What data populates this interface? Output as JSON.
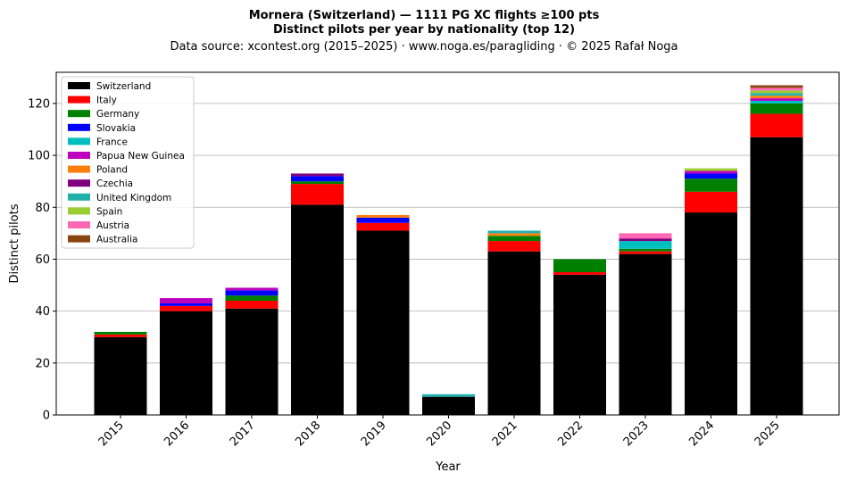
{
  "chart_data": {
    "type": "bar",
    "stacked": true,
    "title": "Mornera (Switzerland)  —  1111 PG XC flights ≥100 pts",
    "subtitle": "Distinct pilots per year by nationality (top 12)",
    "source": "Data source: xcontest.org (2015–2025)  ·  www.noga.es/paragliding  ·  © 2025 Rafał Noga",
    "xlabel": "Year",
    "ylabel": "Distinct pilots",
    "ylim": [
      0,
      132
    ],
    "yticks": [
      0,
      20,
      40,
      60,
      80,
      100,
      120
    ],
    "grid": "y",
    "legend_position": "top-left",
    "categories": [
      "2015",
      "2016",
      "2017",
      "2018",
      "2019",
      "2020",
      "2021",
      "2022",
      "2023",
      "2024",
      "2025"
    ],
    "series": [
      {
        "name": "Switzerland",
        "color": "#000000",
        "values": [
          30,
          40,
          41,
          81,
          71,
          7,
          63,
          54,
          62,
          78,
          107
        ]
      },
      {
        "name": "Italy",
        "color": "#ff0000",
        "values": [
          1,
          2,
          3,
          8,
          3,
          0,
          4,
          1,
          1,
          8,
          9
        ]
      },
      {
        "name": "Germany",
        "color": "#008000",
        "values": [
          1,
          0,
          2,
          1,
          0,
          0,
          2,
          5,
          1,
          5,
          4
        ]
      },
      {
        "name": "Slovakia",
        "color": "#0000ff",
        "values": [
          0,
          1,
          2,
          2,
          2,
          0,
          0,
          0,
          0,
          2,
          0
        ]
      },
      {
        "name": "France",
        "color": "#00bfbf",
        "values": [
          0,
          0,
          0,
          0,
          0,
          0,
          0,
          0,
          3,
          0,
          1
        ]
      },
      {
        "name": "Papua New Guinea",
        "color": "#bf00bf",
        "values": [
          0,
          2,
          1,
          0,
          0,
          0,
          0,
          0,
          0,
          1,
          1
        ]
      },
      {
        "name": "Poland",
        "color": "#ff7f0e",
        "values": [
          0,
          0,
          0,
          0,
          1,
          0,
          1,
          0,
          0,
          0,
          1
        ]
      },
      {
        "name": "Czechia",
        "color": "#800080",
        "values": [
          0,
          0,
          0,
          1,
          0,
          0,
          0,
          0,
          1,
          0,
          0
        ]
      },
      {
        "name": "United Kingdom",
        "color": "#20b2aa",
        "values": [
          0,
          0,
          0,
          0,
          0,
          1,
          1,
          0,
          0,
          0,
          1
        ]
      },
      {
        "name": "Spain",
        "color": "#9acd32",
        "values": [
          0,
          0,
          0,
          0,
          0,
          0,
          0,
          0,
          0,
          1,
          1
        ]
      },
      {
        "name": "Austria",
        "color": "#ff69b4",
        "values": [
          0,
          0,
          0,
          0,
          0,
          0,
          0,
          0,
          2,
          0,
          1
        ]
      },
      {
        "name": "Australia",
        "color": "#8b4513",
        "values": [
          0,
          0,
          0,
          0,
          0,
          0,
          0,
          0,
          0,
          0,
          1
        ]
      }
    ]
  }
}
